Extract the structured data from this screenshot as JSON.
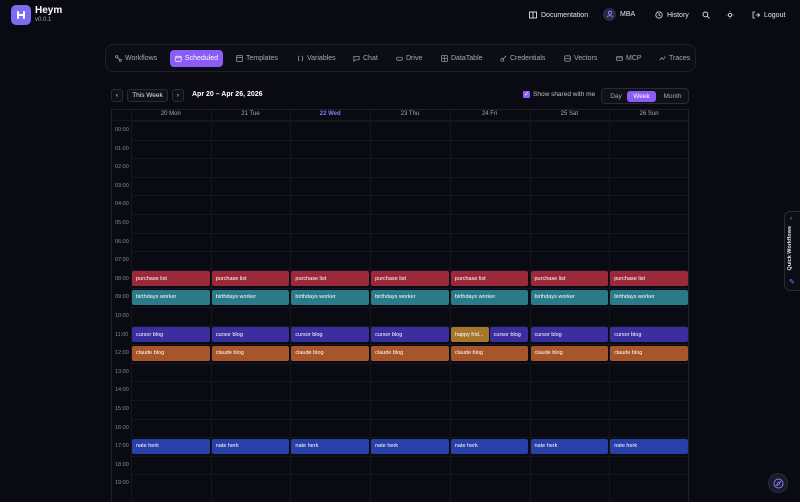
{
  "app": {
    "name": "Heym",
    "version": "v0.0.1"
  },
  "header": {
    "documentation": "Documentation",
    "user": "MBA",
    "history": "History",
    "logout": "Logout"
  },
  "nav": {
    "items": [
      {
        "label": "Workflows",
        "icon": "workflow-icon"
      },
      {
        "label": "Scheduled",
        "icon": "calendar-icon",
        "active": true
      },
      {
        "label": "Templates",
        "icon": "template-icon"
      },
      {
        "label": "Variables",
        "icon": "variable-icon"
      },
      {
        "label": "Chat",
        "icon": "chat-icon"
      },
      {
        "label": "Drive",
        "icon": "drive-icon"
      },
      {
        "label": "DataTable",
        "icon": "table-icon"
      },
      {
        "label": "Credentials",
        "icon": "key-icon"
      },
      {
        "label": "Vectors",
        "icon": "vector-icon"
      },
      {
        "label": "MCP",
        "icon": "mcp-icon"
      },
      {
        "label": "Traces",
        "icon": "trace-icon"
      }
    ]
  },
  "toolbar": {
    "prev": "‹",
    "this_week": "This Week",
    "next": "›",
    "range": "Apr 20 – Apr 26, 2026",
    "show_shared": "Show shared with me",
    "views": [
      "Day",
      "Week",
      "Month"
    ],
    "active_view": "Week"
  },
  "calendar": {
    "days": [
      "20 Mon",
      "21 Tue",
      "22 Wed",
      "23 Thu",
      "24 Fri",
      "25 Sat",
      "26 Sun"
    ],
    "today_index": 2,
    "hours": [
      "00:00",
      "01:00",
      "02:00",
      "03:00",
      "04:00",
      "05:00",
      "06:00",
      "07:00",
      "08:00",
      "09:00",
      "10:00",
      "11:00",
      "12:00",
      "13:00",
      "14:00",
      "15:00",
      "16:00",
      "17:00",
      "18:00",
      "19:00"
    ],
    "colors": {
      "purchase": "#9a2a3a",
      "birthdays": "#2a7a8a",
      "cursor": "#3b2fa0",
      "claude": "#a8552a",
      "happy": "#a8762a",
      "nate": "#2840a8"
    },
    "events": [
      {
        "title": "purchase list",
        "day": 0,
        "hour": 8,
        "color": "purchase"
      },
      {
        "title": "purchase list",
        "day": 1,
        "hour": 8,
        "color": "purchase"
      },
      {
        "title": "purchase list",
        "day": 2,
        "hour": 8,
        "color": "purchase"
      },
      {
        "title": "purchase list",
        "day": 3,
        "hour": 8,
        "color": "purchase"
      },
      {
        "title": "purchase list",
        "day": 4,
        "hour": 8,
        "color": "purchase"
      },
      {
        "title": "purchase list",
        "day": 5,
        "hour": 8,
        "color": "purchase"
      },
      {
        "title": "purchase list",
        "day": 6,
        "hour": 8,
        "color": "purchase"
      },
      {
        "title": "birthdays worker",
        "day": 0,
        "hour": 9,
        "color": "birthdays"
      },
      {
        "title": "birthdays worker",
        "day": 1,
        "hour": 9,
        "color": "birthdays"
      },
      {
        "title": "birthdays worker",
        "day": 2,
        "hour": 9,
        "color": "birthdays"
      },
      {
        "title": "birthdays worker",
        "day": 3,
        "hour": 9,
        "color": "birthdays"
      },
      {
        "title": "birthdays worker",
        "day": 4,
        "hour": 9,
        "color": "birthdays"
      },
      {
        "title": "birthdays worker",
        "day": 5,
        "hour": 9,
        "color": "birthdays"
      },
      {
        "title": "birthdays worker",
        "day": 6,
        "hour": 9,
        "color": "birthdays"
      },
      {
        "title": "cursor blog",
        "day": 0,
        "hour": 11,
        "color": "cursor"
      },
      {
        "title": "cursor blog",
        "day": 1,
        "hour": 11,
        "color": "cursor"
      },
      {
        "title": "cursor blog",
        "day": 2,
        "hour": 11,
        "color": "cursor"
      },
      {
        "title": "cursor blog",
        "day": 3,
        "hour": 11,
        "color": "cursor"
      },
      {
        "title": "happy frid...",
        "day": 4,
        "hour": 11,
        "color": "happy",
        "half": "left"
      },
      {
        "title": "cursor blog",
        "day": 4,
        "hour": 11,
        "color": "cursor",
        "half": "right"
      },
      {
        "title": "cursor blog",
        "day": 5,
        "hour": 11,
        "color": "cursor"
      },
      {
        "title": "cursor blog",
        "day": 6,
        "hour": 11,
        "color": "cursor"
      },
      {
        "title": "claude blog",
        "day": 0,
        "hour": 12,
        "color": "claude"
      },
      {
        "title": "claude blog",
        "day": 1,
        "hour": 12,
        "color": "claude"
      },
      {
        "title": "claude blog",
        "day": 2,
        "hour": 12,
        "color": "claude"
      },
      {
        "title": "claude blog",
        "day": 3,
        "hour": 12,
        "color": "claude"
      },
      {
        "title": "claude blog",
        "day": 4,
        "hour": 12,
        "color": "claude"
      },
      {
        "title": "claude blog",
        "day": 5,
        "hour": 12,
        "color": "claude"
      },
      {
        "title": "claude blog",
        "day": 6,
        "hour": 12,
        "color": "claude"
      },
      {
        "title": "nate herk",
        "day": 0,
        "hour": 17,
        "color": "nate"
      },
      {
        "title": "nate herk",
        "day": 1,
        "hour": 17,
        "color": "nate"
      },
      {
        "title": "nate herk",
        "day": 2,
        "hour": 17,
        "color": "nate"
      },
      {
        "title": "nate herk",
        "day": 3,
        "hour": 17,
        "color": "nate"
      },
      {
        "title": "nate herk",
        "day": 4,
        "hour": 17,
        "color": "nate"
      },
      {
        "title": "nate herk",
        "day": 5,
        "hour": 17,
        "color": "nate"
      },
      {
        "title": "nate herk",
        "day": 6,
        "hour": 17,
        "color": "nate"
      }
    ]
  },
  "quick_workflows": {
    "label": "Quick Workflows"
  }
}
